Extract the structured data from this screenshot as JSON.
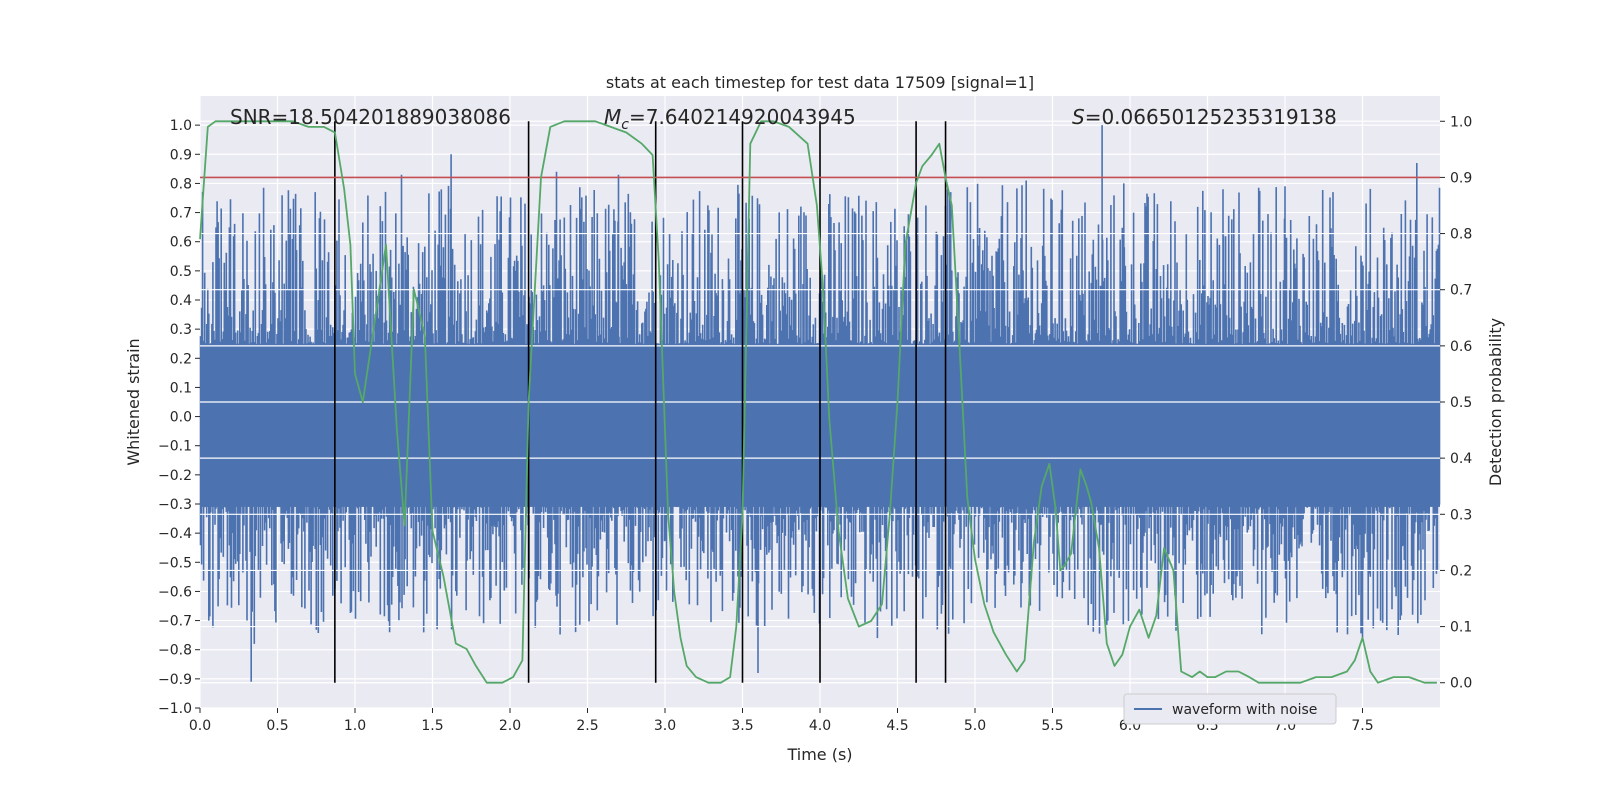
{
  "chart_data": {
    "type": "line",
    "title": "stats at each timestep for test data 17509 [signal=1]",
    "xlabel": "Time (s)",
    "ylabel_left": "Whitened strain",
    "ylabel_right": "Detection probability",
    "xlim": [
      0,
      8.0
    ],
    "ylim_left": [
      -1.0,
      1.1
    ],
    "ylim_right": [
      -0.045,
      1.045
    ],
    "x_ticks": [
      "0.0",
      "0.5",
      "1.0",
      "1.5",
      "2.0",
      "2.5",
      "3.0",
      "3.5",
      "4.0",
      "4.5",
      "5.0",
      "5.5",
      "6.0",
      "6.5",
      "7.0",
      "7.5"
    ],
    "y_ticks_left": [
      "1.0",
      "0.9",
      "0.8",
      "0.7",
      "0.6",
      "0.5",
      "0.4",
      "0.3",
      "0.2",
      "0.1",
      "0.0",
      "−0.1",
      "−0.2",
      "−0.3",
      "−0.4",
      "−0.5",
      "−0.6",
      "−0.7",
      "−0.8",
      "−0.9",
      "−1.0"
    ],
    "y_ticks_right": [
      "1.0",
      "0.9",
      "0.8",
      "0.7",
      "0.6",
      "0.5",
      "0.4",
      "0.3",
      "0.2",
      "0.1",
      "0.0"
    ],
    "grid": true,
    "legend": {
      "position": "lower-right",
      "entries": [
        "waveform with noise"
      ]
    },
    "annotations": {
      "snr": "SNR=18.504201889038086",
      "mc_symbol": "M",
      "mc_sub": "c",
      "mc_value": "=7.640214920043945",
      "s_symbol": "S",
      "s_value": "=0.06650125235319138"
    },
    "threshold": {
      "axis": "right",
      "value": 0.9,
      "color": "#c44e52"
    },
    "vertical_lines": [
      0.87,
      2.12,
      2.94,
      3.5,
      4.0,
      4.62,
      4.81
    ],
    "waveform": {
      "name": "waveform with noise",
      "color": "#4c72b0",
      "description_points": 1200,
      "envelope_typical": 0.42,
      "spikes": [
        {
          "x": 0.33,
          "y": -0.91
        },
        {
          "x": 0.35,
          "y": -0.78
        },
        {
          "x": 1.3,
          "y": 0.83
        },
        {
          "x": 1.62,
          "y": 0.9
        },
        {
          "x": 2.3,
          "y": 0.84
        },
        {
          "x": 2.7,
          "y": 0.83
        },
        {
          "x": 3.6,
          "y": -0.88
        },
        {
          "x": 4.37,
          "y": -0.76
        },
        {
          "x": 5.33,
          "y": 0.81
        },
        {
          "x": 5.82,
          "y": 1.0
        },
        {
          "x": 5.96,
          "y": 0.8
        },
        {
          "x": 6.6,
          "y": 0.78
        },
        {
          "x": 7.0,
          "y": 0.79
        },
        {
          "x": 7.5,
          "y": -0.76
        },
        {
          "x": 7.85,
          "y": 0.87
        }
      ]
    },
    "series": [
      {
        "name": "Detection probability",
        "axis": "right",
        "color": "#55a868",
        "x": [
          0.0,
          0.05,
          0.1,
          0.2,
          0.3,
          0.4,
          0.5,
          0.6,
          0.7,
          0.8,
          0.87,
          0.93,
          0.97,
          1.0,
          1.05,
          1.12,
          1.2,
          1.27,
          1.32,
          1.38,
          1.45,
          1.5,
          1.57,
          1.65,
          1.72,
          1.78,
          1.85,
          1.95,
          2.02,
          2.08,
          2.12,
          2.2,
          2.26,
          2.35,
          2.45,
          2.55,
          2.65,
          2.75,
          2.85,
          2.92,
          2.96,
          3.02,
          3.06,
          3.1,
          3.14,
          3.2,
          3.28,
          3.36,
          3.42,
          3.46,
          3.5,
          3.55,
          3.62,
          3.7,
          3.8,
          3.92,
          3.98,
          4.02,
          4.06,
          4.12,
          4.18,
          4.25,
          4.33,
          4.4,
          4.45,
          4.5,
          4.55,
          4.62,
          4.66,
          4.72,
          4.77,
          4.81,
          4.85,
          4.9,
          4.95,
          5.0,
          5.06,
          5.12,
          5.2,
          5.27,
          5.32,
          5.38,
          5.43,
          5.48,
          5.52,
          5.55,
          5.58,
          5.62,
          5.68,
          5.72,
          5.75,
          5.8,
          5.85,
          5.9,
          5.95,
          6.0,
          6.06,
          6.12,
          6.17,
          6.22,
          6.28,
          6.33,
          6.4,
          6.45,
          6.5,
          6.55,
          6.62,
          6.7,
          6.77,
          6.83,
          6.9,
          7.0,
          7.1,
          7.2,
          7.3,
          7.4,
          7.45,
          7.5,
          7.55,
          7.6,
          7.7,
          7.8,
          7.9,
          7.98
        ],
        "y": [
          0.79,
          0.99,
          1.0,
          1.0,
          1.0,
          1.0,
          1.0,
          1.0,
          0.99,
          0.99,
          0.98,
          0.88,
          0.78,
          0.55,
          0.5,
          0.63,
          0.78,
          0.45,
          0.28,
          0.7,
          0.62,
          0.27,
          0.19,
          0.07,
          0.06,
          0.03,
          0.0,
          0.0,
          0.01,
          0.04,
          0.5,
          0.9,
          0.99,
          1.0,
          1.0,
          1.0,
          0.99,
          0.98,
          0.96,
          0.94,
          0.75,
          0.3,
          0.16,
          0.08,
          0.03,
          0.01,
          0.0,
          0.0,
          0.01,
          0.1,
          0.3,
          0.96,
          1.0,
          1.0,
          0.99,
          0.96,
          0.85,
          0.7,
          0.47,
          0.27,
          0.15,
          0.1,
          0.11,
          0.14,
          0.3,
          0.5,
          0.78,
          0.89,
          0.92,
          0.94,
          0.96,
          0.9,
          0.85,
          0.6,
          0.33,
          0.22,
          0.14,
          0.09,
          0.05,
          0.02,
          0.04,
          0.25,
          0.35,
          0.39,
          0.31,
          0.2,
          0.21,
          0.23,
          0.38,
          0.35,
          0.32,
          0.24,
          0.07,
          0.03,
          0.05,
          0.1,
          0.13,
          0.08,
          0.12,
          0.24,
          0.2,
          0.02,
          0.01,
          0.02,
          0.01,
          0.01,
          0.02,
          0.02,
          0.01,
          0.0,
          0.0,
          0.0,
          0.0,
          0.01,
          0.01,
          0.02,
          0.04,
          0.08,
          0.02,
          0.0,
          0.01,
          0.01,
          0.0,
          0.0
        ]
      }
    ]
  }
}
